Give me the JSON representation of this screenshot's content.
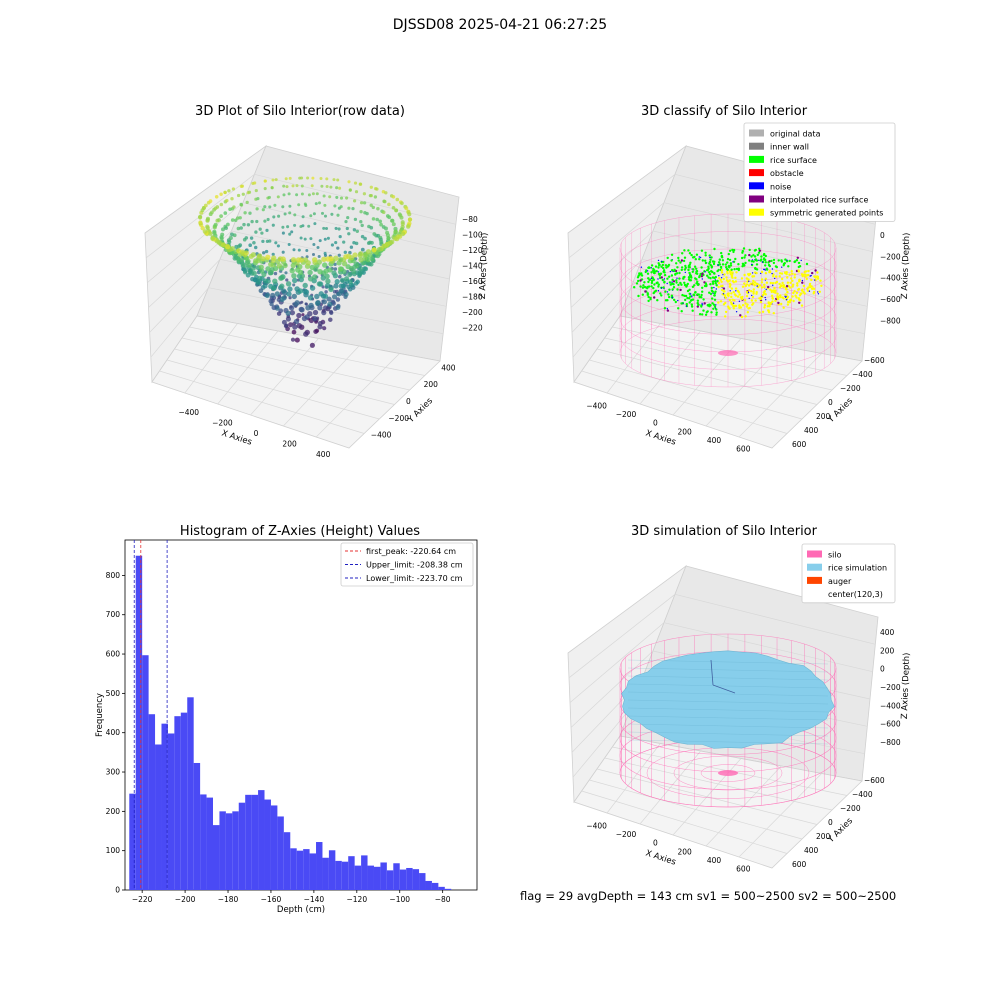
{
  "figure": {
    "suptitle": "DJSSD08 2025-04-21 06:27:25",
    "footer": "flag = 29  avgDepth = 143 cm  sv1 = 500~2500  sv2 = 500~2500"
  },
  "colors": {
    "hist_bar": "#4a4af5",
    "first_peak_line": "#e53030",
    "limit_lines": "#2020c0",
    "silo": "#ff69b4",
    "rice_simulation": "#87ceeb",
    "auger": "#ff4500",
    "noise": "#0000ff",
    "rice_surface": "#00ff00",
    "symmetric": "#ffff00",
    "interp": "#800080",
    "obstacle": "#ff0000",
    "inner_wall": "#808080",
    "original": "#b0b0b0",
    "pane": "#f0f0f0",
    "grid": "#d8d8d8"
  },
  "chart_data": [
    {
      "type": "scatter",
      "title": "3D Plot of Silo Interior(row data)",
      "xlabel": "X Axies",
      "ylabel": "Y Axies",
      "zlabel": "Z Axies (Depth)",
      "x_ticks": [
        -400,
        -200,
        0,
        200,
        400
      ],
      "y_ticks": [
        -400,
        -200,
        0,
        200,
        400
      ],
      "z_ticks": [
        -80,
        -100,
        -120,
        -140,
        -160,
        -180,
        -200,
        -220
      ],
      "colormap": "viridis"
    },
    {
      "type": "scatter",
      "title": "3D classify of Silo Interior",
      "xlabel": "X Axies",
      "ylabel": "Y Axies",
      "zlabel": "Z Axies (Depth)",
      "x_ticks": [
        -400,
        -200,
        0,
        200,
        400,
        600
      ],
      "y_ticks": [
        600,
        400,
        200,
        0,
        -200,
        -400,
        -600
      ],
      "z_ticks": [
        200,
        0,
        -200,
        -400,
        -600,
        -800
      ],
      "legend": [
        {
          "label": "original data",
          "color": "#b0b0b0"
        },
        {
          "label": "inner wall",
          "color": "#808080"
        },
        {
          "label": "rice surface",
          "color": "#00ff00"
        },
        {
          "label": "obstacle",
          "color": "#ff0000"
        },
        {
          "label": "noise",
          "color": "#0000ff"
        },
        {
          "label": "interpolated rice surface",
          "color": "#800080"
        },
        {
          "label": "symmetric generated points",
          "color": "#ffff00"
        }
      ],
      "legend_loc": "upper right"
    },
    {
      "type": "bar",
      "title": "Histogram of Z-Axies (Height) Values",
      "xlabel": "Depth (cm)",
      "ylabel": "Frequency",
      "xlim": [
        -228,
        -64
      ],
      "ylim": [
        0,
        890
      ],
      "x_ticks": [
        -220,
        -200,
        -180,
        -160,
        -140,
        -120,
        -100,
        -80
      ],
      "y_ticks": [
        0,
        100,
        200,
        300,
        400,
        500,
        600,
        700,
        800
      ],
      "bin_width": 3,
      "bin_start": -226,
      "values": [
        245,
        850,
        597,
        447,
        370,
        423,
        398,
        442,
        451,
        490,
        323,
        243,
        235,
        165,
        200,
        195,
        200,
        222,
        242,
        242,
        254,
        230,
        215,
        187,
        147,
        106,
        100,
        104,
        93,
        122,
        82,
        101,
        74,
        72,
        86,
        62,
        88,
        62,
        59,
        70,
        50,
        68,
        52,
        56,
        53,
        43,
        23,
        18,
        8,
        3
      ],
      "vlines": [
        {
          "x": -220.64,
          "label": "first_peak: -220.64 cm",
          "color": "#e53030"
        },
        {
          "x": -208.38,
          "label": "Upper_limit: -208.38 cm",
          "color": "#2020c0"
        },
        {
          "x": -223.7,
          "label": "Lower_limit: -223.70 cm",
          "color": "#2020c0"
        }
      ],
      "legend_loc": "upper right"
    },
    {
      "type": "scatter",
      "title": "3D simulation of Silo Interior",
      "xlabel": "X Axies",
      "ylabel": "Y Axies",
      "zlabel": "Z Axies (Depth)",
      "x_ticks": [
        -400,
        -200,
        0,
        200,
        400,
        600
      ],
      "y_ticks": [
        600,
        400,
        200,
        0,
        -200,
        -400,
        -600
      ],
      "z_ticks": [
        400,
        200,
        0,
        -200,
        -400,
        -600,
        -800
      ],
      "legend": [
        {
          "label": "silo",
          "color": "#ff69b4"
        },
        {
          "label": "rice simulation",
          "color": "#87ceeb"
        },
        {
          "label": "auger",
          "color": "#ff4500"
        },
        {
          "label": "center(120,3)",
          "color": ""
        }
      ],
      "legend_loc": "upper right"
    }
  ]
}
